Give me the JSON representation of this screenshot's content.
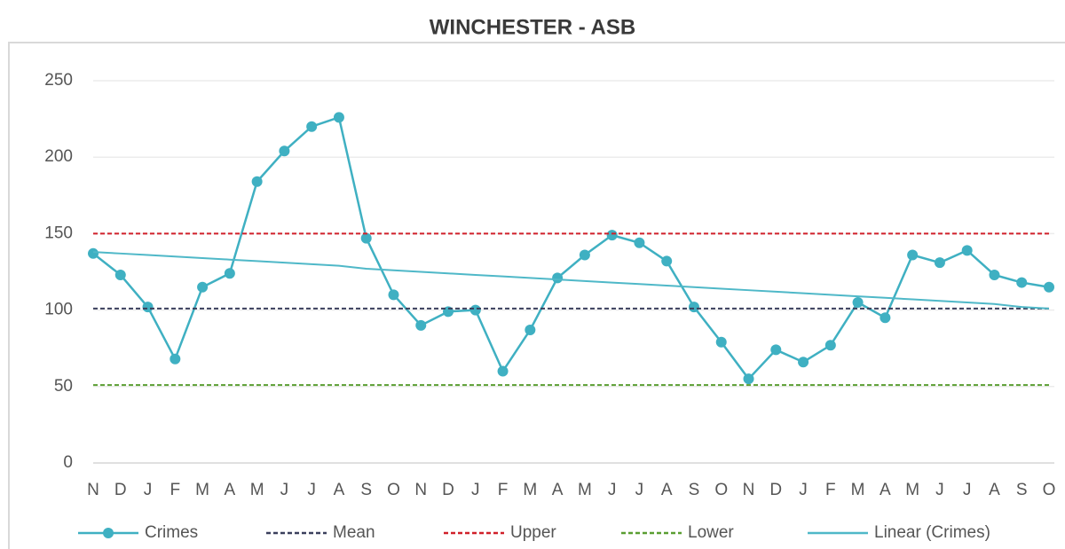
{
  "chart_data": {
    "type": "line",
    "title": "WINCHESTER - ASB",
    "categories": [
      "N",
      "D",
      "J",
      "F",
      "M",
      "A",
      "M",
      "J",
      "J",
      "A",
      "S",
      "O",
      "N",
      "D",
      "J",
      "F",
      "M",
      "A",
      "M",
      "J",
      "J",
      "A",
      "S",
      "O",
      "N",
      "D",
      "J",
      "F",
      "M",
      "A",
      "M",
      "J",
      "J",
      "A",
      "S",
      "O"
    ],
    "ylim": [
      0,
      250
    ],
    "yticks": [
      0,
      50,
      100,
      150,
      200,
      250
    ],
    "grid": true,
    "legend": "bottom",
    "series": [
      {
        "name": "Crimes",
        "color": "#3fb0c2",
        "markers": true,
        "dashed": false,
        "values": [
          137,
          123,
          102,
          68,
          115,
          124,
          184,
          204,
          220,
          226,
          147,
          110,
          90,
          99,
          100,
          60,
          87,
          121,
          136,
          149,
          144,
          132,
          102,
          79,
          55,
          74,
          66,
          77,
          105,
          95,
          136,
          131,
          139,
          123,
          118,
          115
        ]
      },
      {
        "name": "Mean",
        "color": "#3a3f5c",
        "markers": false,
        "dashed": true,
        "values": [
          101,
          101,
          101,
          101,
          101,
          101,
          101,
          101,
          101,
          101,
          101,
          101,
          101,
          101,
          101,
          101,
          101,
          101,
          101,
          101,
          101,
          101,
          101,
          101,
          101,
          101,
          101,
          101,
          101,
          101,
          101,
          101,
          101,
          101,
          101,
          101
        ]
      },
      {
        "name": "Upper",
        "color": "#d0202a",
        "markers": false,
        "dashed": true,
        "values": [
          150,
          150,
          150,
          150,
          150,
          150,
          150,
          150,
          150,
          150,
          150,
          150,
          150,
          150,
          150,
          150,
          150,
          150,
          150,
          150,
          150,
          150,
          150,
          150,
          150,
          150,
          150,
          150,
          150,
          150,
          150,
          150,
          150,
          150,
          150,
          150
        ]
      },
      {
        "name": "Lower",
        "color": "#5a9e32",
        "markers": false,
        "dashed": true,
        "values": [
          51,
          51,
          51,
          51,
          51,
          51,
          51,
          51,
          51,
          51,
          51,
          51,
          51,
          51,
          51,
          51,
          51,
          51,
          51,
          51,
          51,
          51,
          51,
          51,
          51,
          51,
          51,
          51,
          51,
          51,
          51,
          51,
          51,
          51,
          51,
          51
        ]
      },
      {
        "name": "Linear (Crimes)",
        "color": "#4fb8c8",
        "markers": false,
        "dashed": false,
        "values": [
          138,
          137,
          136,
          135,
          134,
          133,
          132,
          131,
          130,
          129,
          127,
          126,
          125,
          124,
          123,
          122,
          121,
          120,
          119,
          118,
          117,
          116,
          115,
          114,
          113,
          112,
          111,
          110,
          109,
          108,
          107,
          106,
          105,
          104,
          102,
          101
        ]
      }
    ]
  }
}
